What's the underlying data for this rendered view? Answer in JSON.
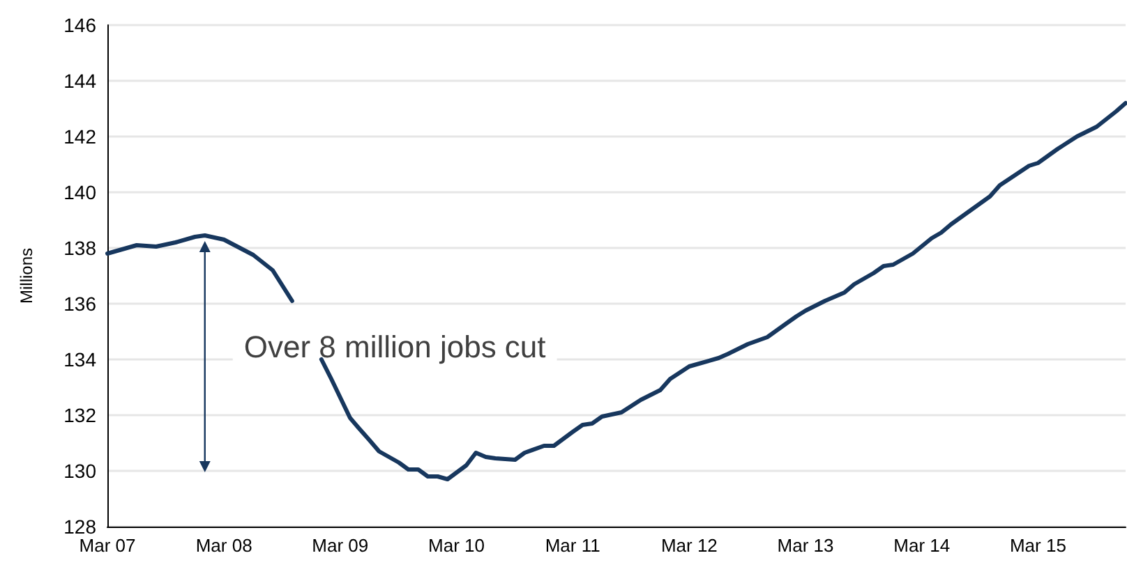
{
  "chart_data": {
    "type": "line",
    "ylabel": "Millions",
    "annotations": [
      "Over 8 million jobs cut"
    ],
    "x": [
      "2007-03",
      "2007-06",
      "2007-08",
      "2007-10",
      "2007-12",
      "2008-01",
      "2008-03",
      "2008-06",
      "2008-08",
      "2008-10",
      "2008-11",
      "2008-12",
      "2009-01",
      "2009-02",
      "2009-04",
      "2009-05",
      "2009-06",
      "2009-07",
      "2009-09",
      "2009-10",
      "2009-11",
      "2009-12",
      "2010-01",
      "2010-02",
      "2010-04",
      "2010-05",
      "2010-06",
      "2010-07",
      "2010-09",
      "2010-10",
      "2010-12",
      "2011-01",
      "2011-03",
      "2011-04",
      "2011-05",
      "2011-06",
      "2011-08",
      "2011-10",
      "2011-12",
      "2012-01",
      "2012-03",
      "2012-06",
      "2012-07",
      "2012-09",
      "2012-11",
      "2013-01",
      "2013-02",
      "2013-03",
      "2013-05",
      "2013-07",
      "2013-08",
      "2013-10",
      "2013-11",
      "2013-12",
      "2014-02",
      "2014-04",
      "2014-05",
      "2014-06",
      "2014-08",
      "2014-10",
      "2014-11",
      "2015-02",
      "2015-03",
      "2015-05",
      "2015-07",
      "2015-09",
      "2015-11",
      "2015-12"
    ],
    "series": [
      {
        "color": "#17375e",
        "values": [
          137.8,
          138.1,
          138.05,
          138.2,
          138.4,
          138.45,
          138.3,
          137.75,
          137.2,
          136.1,
          null,
          null,
          134.0,
          133.3,
          131.9,
          131.5,
          131.1,
          130.7,
          130.3,
          130.05,
          130.05,
          129.8,
          129.8,
          129.7,
          130.2,
          130.65,
          130.5,
          130.45,
          130.4,
          130.65,
          130.9,
          130.9,
          131.4,
          131.65,
          131.7,
          131.95,
          132.1,
          132.55,
          132.9,
          133.3,
          133.75,
          134.05,
          134.2,
          134.55,
          134.8,
          135.3,
          135.55,
          135.75,
          136.1,
          136.4,
          136.7,
          137.1,
          137.35,
          137.4,
          137.8,
          138.35,
          138.55,
          138.85,
          139.35,
          139.85,
          140.25,
          140.95,
          141.05,
          141.55,
          142.0,
          142.35,
          142.9,
          143.2
        ]
      }
    ],
    "xlim": [
      "2007-03",
      "2015-12"
    ],
    "xticks": [
      {
        "value": "2007-03",
        "label": "Mar 07"
      },
      {
        "value": "2008-03",
        "label": "Mar 08"
      },
      {
        "value": "2009-03",
        "label": "Mar 09"
      },
      {
        "value": "2010-03",
        "label": "Mar 10"
      },
      {
        "value": "2011-03",
        "label": "Mar 11"
      },
      {
        "value": "2012-03",
        "label": "Mar 12"
      },
      {
        "value": "2013-03",
        "label": "Mar 13"
      },
      {
        "value": "2014-03",
        "label": "Mar 14"
      },
      {
        "value": "2015-03",
        "label": "Mar 15"
      }
    ],
    "ylim": [
      128,
      146
    ],
    "yticks": [
      128,
      130,
      132,
      134,
      136,
      138,
      140,
      142,
      144,
      146
    ],
    "grid": "y",
    "marker": "none",
    "line_style": "solid"
  }
}
